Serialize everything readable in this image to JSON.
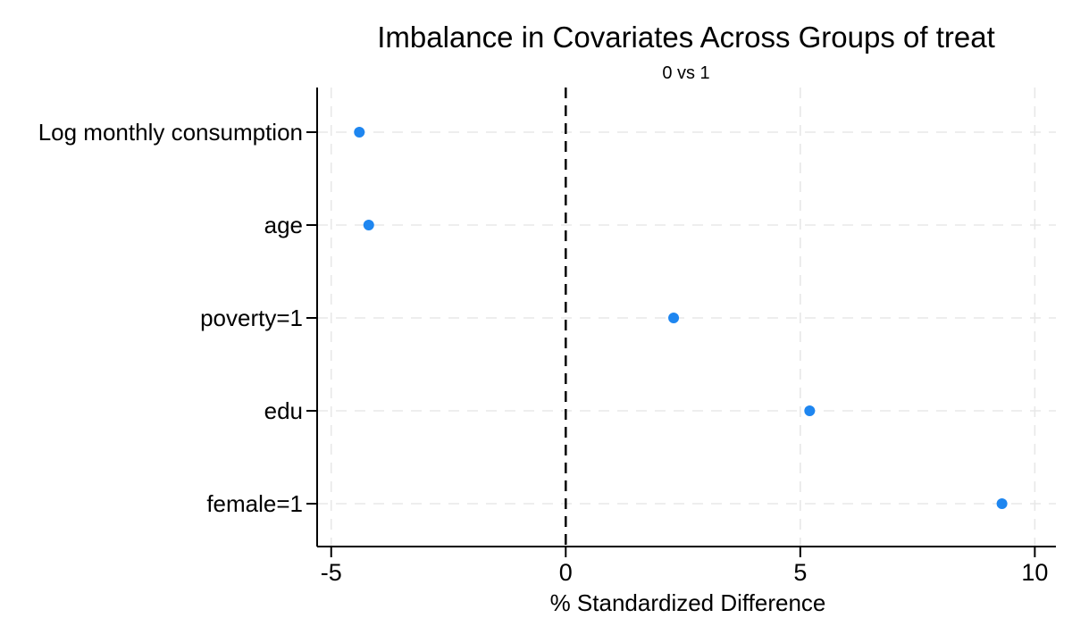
{
  "chart_data": {
    "type": "scatter",
    "variant": "horizontal-dot-plot",
    "title": "Imbalance in Covariates Across Groups of treat",
    "subtitle": "0 vs 1",
    "xlabel": "% Standardized Difference",
    "ylabel": "",
    "categories": [
      "Log monthly consumption",
      "age",
      "poverty=1",
      "edu",
      "female=1"
    ],
    "values": [
      -4.4,
      -4.2,
      2.3,
      5.2,
      9.3
    ],
    "xticks": [
      -5,
      0,
      5,
      10
    ],
    "xlim": [
      -5.3,
      10.45
    ],
    "reference_line_x": 0,
    "grid": true,
    "legend": "none",
    "colors": {
      "marker": "#1e86f0",
      "grid": "#e8e8e8",
      "axis": "#000000",
      "reference_line": "#000000",
      "text": "#000000",
      "background": "#ffffff"
    }
  }
}
